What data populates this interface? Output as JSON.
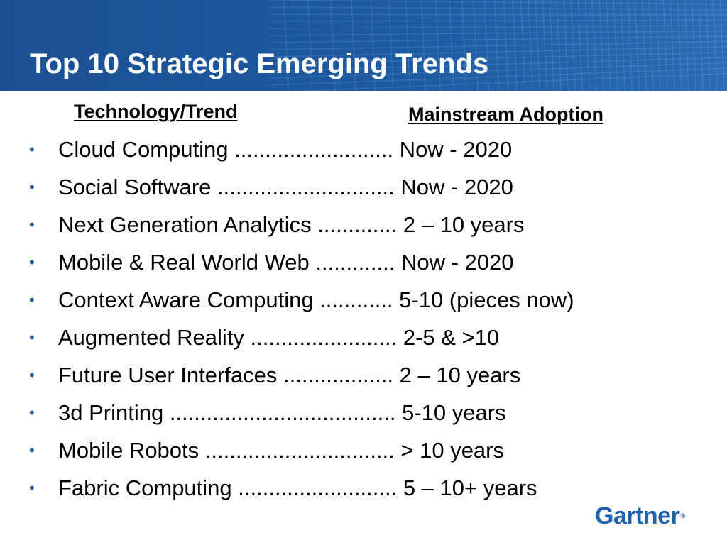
{
  "slide": {
    "title": "Top 10 Strategic Emerging Trends",
    "header_color": "#1e5aa2",
    "columns": {
      "technology": "Technology/Trend",
      "adoption": "Mainstream Adoption"
    },
    "bullet_glyph": "•",
    "trends": [
      {
        "text": "Cloud Computing .......................... Now - 2020"
      },
      {
        "text": "Social Software ............................. Now - 2020"
      },
      {
        "text": "Next Generation Analytics ............. 2 – 10 years"
      },
      {
        "text": "Mobile & Real World Web ............. Now - 2020"
      },
      {
        "text": "Context Aware Computing ............ 5-10 (pieces now)"
      },
      {
        "text": "Augmented Reality ........................ 2-5  &  >10"
      },
      {
        "text": "Future User Interfaces .................. 2 – 10 years"
      },
      {
        "text": "3d Printing ..................................... 5-10 years"
      },
      {
        "text": "Mobile Robots ............................... > 10 years"
      },
      {
        "text": "Fabric Computing .......................... 5 – 10+ years"
      }
    ],
    "logo": {
      "text": "Gartner",
      "mark": "®",
      "color": "#1d61ab"
    }
  }
}
